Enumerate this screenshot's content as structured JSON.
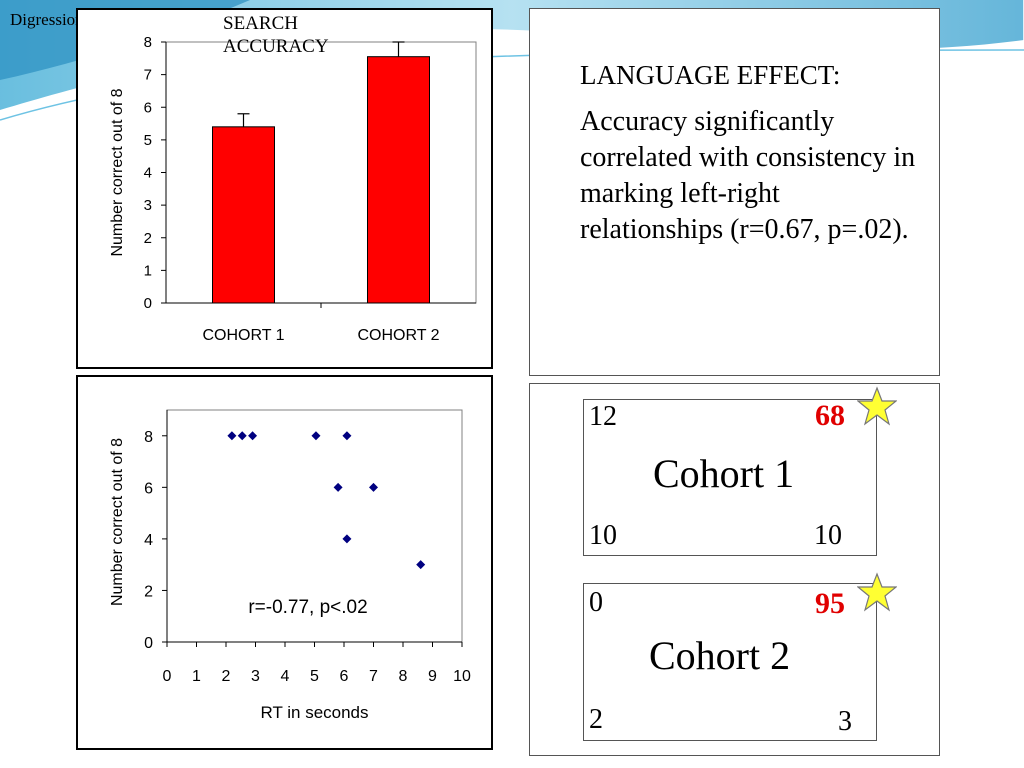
{
  "slide": {
    "tag": "Digression",
    "colors": {
      "bar": "#ff0000",
      "marker": "#000080",
      "pct": "#e00000",
      "star": "#ffff33"
    }
  },
  "chart_data": [
    {
      "type": "bar",
      "title_lines": [
        "SEARCH",
        "ACCURACY"
      ],
      "categories": [
        "COHORT 1",
        "COHORT 2"
      ],
      "values": [
        5.4,
        7.55
      ],
      "errors": [
        0.4,
        0.45
      ],
      "ylabel": "Number correct out of 8",
      "xlabel": "",
      "ylim": [
        0,
        8
      ],
      "yticks": [
        "0",
        "1",
        "2",
        "3",
        "4",
        "5",
        "6",
        "7",
        "8"
      ],
      "grid": false
    },
    {
      "type": "scatter",
      "points": [
        {
          "x": 2.2,
          "y": 8
        },
        {
          "x": 2.55,
          "y": 8
        },
        {
          "x": 2.9,
          "y": 8
        },
        {
          "x": 5.05,
          "y": 8
        },
        {
          "x": 6.1,
          "y": 8
        },
        {
          "x": 5.8,
          "y": 6
        },
        {
          "x": 7.0,
          "y": 6
        },
        {
          "x": 6.1,
          "y": 4
        },
        {
          "x": 8.6,
          "y": 3
        }
      ],
      "xlabel": "RT in seconds",
      "ylabel": "Number correct out of 8",
      "xlim": [
        0,
        10
      ],
      "ylim": [
        0,
        9
      ],
      "xticks": [
        "0",
        "1",
        "2",
        "3",
        "4",
        "5",
        "6",
        "7",
        "8",
        "9",
        "10"
      ],
      "yticks": [
        "0",
        "2",
        "4",
        "6",
        "8"
      ],
      "annotation": "r=-0.77, p<.02",
      "grid": false
    }
  ],
  "language": {
    "heading": "LANGUAGE EFFECT:",
    "body": "Accuracy significantly correlated with consistency in marking left-right relationships (r=0.67, p=.02)."
  },
  "cohorts": [
    {
      "name": "Cohort 1",
      "top_left": "12",
      "percent": "68",
      "bottom_left": "10",
      "bottom_right": "10"
    },
    {
      "name": "Cohort 2",
      "top_left": "0",
      "percent": "95",
      "bottom_left": "2",
      "bottom_right": "3"
    }
  ]
}
